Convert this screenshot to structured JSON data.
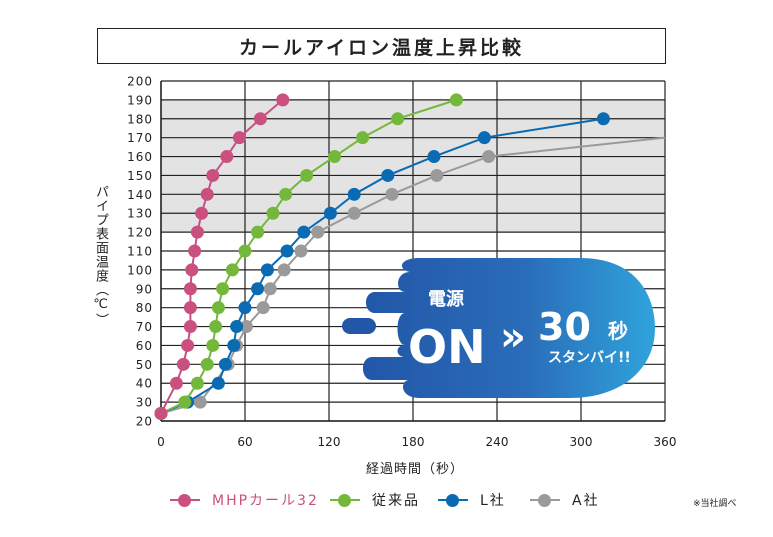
{
  "chart_data": {
    "type": "line",
    "title": "カールアイロン温度上昇比較",
    "xlabel": "経過時間（秒）",
    "ylabel": "パイプ表面温度（℃）",
    "xlim": [
      0,
      360
    ],
    "ylim": [
      20,
      200
    ],
    "x_ticks": [
      0,
      60,
      120,
      180,
      240,
      300,
      360
    ],
    "y_ticks": [
      20,
      30,
      40,
      50,
      60,
      70,
      80,
      90,
      100,
      110,
      120,
      130,
      140,
      150,
      160,
      170,
      180,
      190,
      200
    ],
    "grid": true,
    "shaded_band": [
      120,
      190
    ],
    "legend_position": "bottom",
    "series": [
      {
        "name": "MHPカール32",
        "color": "#c9507f",
        "x": [
          0,
          11,
          16,
          19,
          21,
          21,
          21,
          22,
          24,
          26,
          29,
          33,
          37,
          47,
          56,
          71,
          87
        ],
        "y": [
          24,
          40,
          50,
          60,
          70,
          80,
          90,
          100,
          110,
          120,
          130,
          140,
          150,
          160,
          170,
          180,
          190
        ]
      },
      {
        "name": "従来品",
        "color": "#74b83b",
        "x": [
          0,
          17,
          26,
          33,
          37,
          39,
          41,
          44,
          51,
          60,
          69,
          80,
          89,
          104,
          124,
          144,
          169,
          211
        ],
        "y": [
          24,
          30,
          40,
          50,
          60,
          70,
          80,
          90,
          100,
          110,
          120,
          130,
          140,
          150,
          160,
          170,
          180,
          190
        ]
      },
      {
        "name": "L社",
        "color": "#0a6ab2",
        "x": [
          0,
          19,
          41,
          46,
          52,
          54,
          60,
          69,
          76,
          90,
          102,
          121,
          138,
          162,
          195,
          231,
          316
        ],
        "y": [
          24,
          30,
          40,
          50,
          60,
          70,
          80,
          90,
          100,
          110,
          120,
          130,
          140,
          150,
          160,
          170,
          180
        ]
      },
      {
        "name": "A社",
        "color": "#9a9a9a",
        "x": [
          0,
          28,
          48,
          54,
          61,
          73,
          78,
          88,
          100,
          112,
          138,
          165,
          197,
          234
        ],
        "y": [
          24,
          30,
          50,
          60,
          70,
          80,
          90,
          100,
          110,
          120,
          130,
          140,
          150,
          160
        ],
        "line_end": [
          360,
          170
        ]
      }
    ]
  },
  "banner": {
    "line1": "電源",
    "on": "ON",
    "arrow": "»",
    "seconds": "30",
    "unit": "秒",
    "standby": "スタンバイ!!"
  },
  "note": "※当社調べ"
}
